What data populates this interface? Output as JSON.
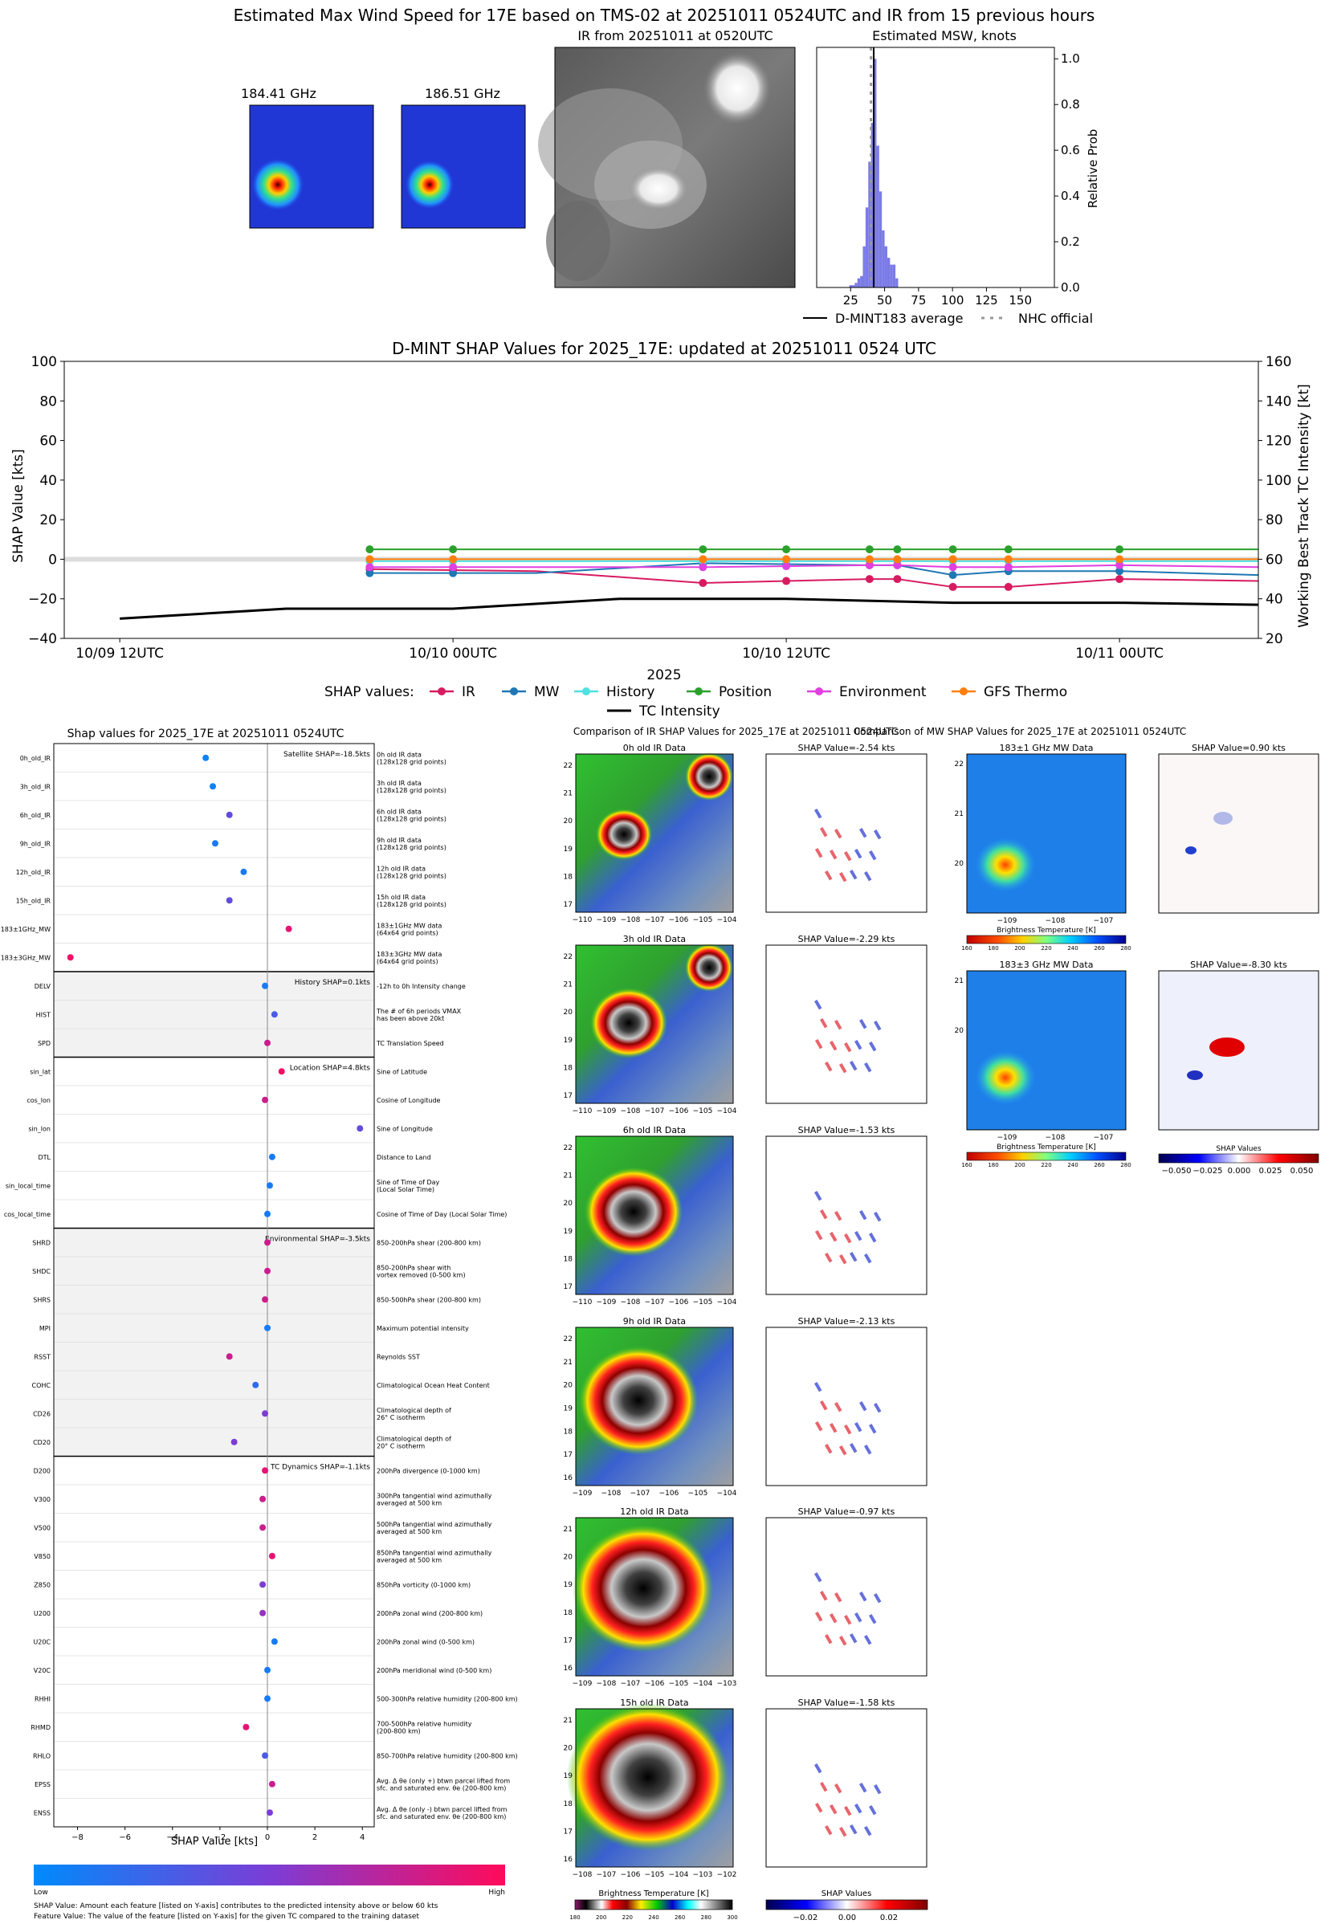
{
  "page": {
    "main_title": "Estimated Max Wind Speed for 17E based on TMS-02 at 20251011 0524UTC and IR from 15 previous hours"
  },
  "top_panels": {
    "mw1_title": "184.41 GHz",
    "mw2_title": "186.51 GHz",
    "ir_title": "IR from 20251011 at 0520UTC",
    "hist_title": "Estimated MSW, knots",
    "hist_ylabel": "Relative Prob",
    "hist_xticks": [
      "25",
      "50",
      "75",
      "100",
      "125",
      "150"
    ],
    "hist_yticks": [
      "0.0",
      "0.2",
      "0.4",
      "0.6",
      "0.8",
      "1.0"
    ],
    "legend_avg": "D-MINT183 average",
    "legend_nhc": "NHC official"
  },
  "colors": {
    "ir": "#d81b60",
    "mw": "#1f77b4",
    "history": "#4fe0e0",
    "position": "#2ca02c",
    "environment": "#e040e0",
    "gfs": "#ff7f0e",
    "intensity": "#000000",
    "hist_bar": "#7b7be6"
  },
  "timeseries": {
    "title": "D-MINT SHAP Values for 2025_17E: updated at 20251011 0524 UTC",
    "ylabel_left": "SHAP Value [kts]",
    "ylabel_right": "Working Best Track TC Intensity [kt]",
    "xlabel": "2025",
    "yticks_left": [
      "100",
      "80",
      "60",
      "40",
      "20",
      "0",
      "−20",
      "−40"
    ],
    "yticks_right": [
      "160",
      "140",
      "120",
      "100",
      "80",
      "60",
      "40",
      "20"
    ],
    "xticks": [
      "10/09 12UTC",
      "10/10 00UTC",
      "10/10 12UTC",
      "10/11 00UTC"
    ],
    "legend_prefix": "SHAP values:",
    "legend_labels": [
      "IR",
      "MW",
      "History",
      "Position",
      "Environment",
      "GFS Thermo"
    ],
    "legend_intensity": "TC Intensity"
  },
  "bar_panel": {
    "title": "Shap values for 2025_17E at 20251011 0524UTC",
    "xlabel": "SHAP Value [kts]",
    "xticks": [
      "−8",
      "−6",
      "−4",
      "−2",
      "0",
      "2",
      "4"
    ],
    "group_labels": [
      "Satellite SHAP=-18.5kts",
      "History SHAP=0.1kts",
      "Location SHAP=4.8kts",
      "Environmental SHAP=-3.5kts",
      "TC Dynamics SHAP=-1.1kts"
    ],
    "colorbar_low": "Low",
    "colorbar_high": "High",
    "footnote1": "SHAP Value: Amount each feature [listed on Y-axis] contributes to the predicted intensity above or below 60 kts",
    "footnote2": "Feature Value: The value of the feature [listed on Y-axis] for the given TC compared to the training dataset"
  },
  "features": [
    {
      "name": "0h_old_IR",
      "desc": "0h old IR data\n(128x128 grid points)"
    },
    {
      "name": "3h_old_IR",
      "desc": "3h old IR data\n(128x128 grid points)"
    },
    {
      "name": "6h_old_IR",
      "desc": "6h old IR data\n(128x128 grid points)"
    },
    {
      "name": "9h_old_IR",
      "desc": "9h old IR data\n(128x128 grid points)"
    },
    {
      "name": "12h_old_IR",
      "desc": "12h old IR data\n(128x128 grid points)"
    },
    {
      "name": "15h_old_IR",
      "desc": "15h old IR data\n(128x128 grid points)"
    },
    {
      "name": "183±1GHz_MW",
      "desc": "183±1GHz MW data\n(64x64 grid points)"
    },
    {
      "name": "183±3GHz_MW",
      "desc": "183±3GHz MW data\n(64x64 grid points)"
    },
    {
      "name": "DELV",
      "desc": "-12h to 0h Intensity change"
    },
    {
      "name": "HIST",
      "desc": "The # of 6h periods VMAX\nhas been above 20kt"
    },
    {
      "name": "SPD",
      "desc": "TC Translation Speed"
    },
    {
      "name": "sin_lat",
      "desc": "Sine of Latitude"
    },
    {
      "name": "cos_lon",
      "desc": "Cosine of Longitude"
    },
    {
      "name": "sin_lon",
      "desc": "Sine of Longitude"
    },
    {
      "name": "DTL",
      "desc": "Distance to Land"
    },
    {
      "name": "sin_local_time",
      "desc": "Sine of Time of Day\n(Local Solar Time)"
    },
    {
      "name": "cos_local_time",
      "desc": "Cosine of Time of Day (Local Solar Time)"
    },
    {
      "name": "SHRD",
      "desc": "850-200hPa shear (200-800 km)"
    },
    {
      "name": "SHDC",
      "desc": "850-200hPa shear with\nvortex removed (0-500 km)"
    },
    {
      "name": "SHRS",
      "desc": "850-500hPa shear (200-800 km)"
    },
    {
      "name": "MPI",
      "desc": "Maximum potential intensity"
    },
    {
      "name": "RSST",
      "desc": "Reynolds SST"
    },
    {
      "name": "COHC",
      "desc": "Climatological Ocean Heat Content"
    },
    {
      "name": "CD26",
      "desc": "Climatological depth of\n26° C isotherm"
    },
    {
      "name": "CD20",
      "desc": "Climatological depth of\n20° C isotherm"
    },
    {
      "name": "D200",
      "desc": "200hPa divergence (0-1000 km)"
    },
    {
      "name": "V300",
      "desc": "300hPa tangential wind azimuthally\naveraged at 500 km"
    },
    {
      "name": "V500",
      "desc": "500hPa tangential wind azimuthally\naveraged at 500 km"
    },
    {
      "name": "V850",
      "desc": "850hPa tangential wind azimuthally\naveraged at 500 km"
    },
    {
      "name": "Z850",
      "desc": "850hPa vorticity (0-1000 km)"
    },
    {
      "name": "U200",
      "desc": "200hPa zonal wind (200-800 km)"
    },
    {
      "name": "U20C",
      "desc": "200hPa zonal wind (0-500 km)"
    },
    {
      "name": "V20C",
      "desc": "200hPa meridional wind (0-500 km)"
    },
    {
      "name": "RHHI",
      "desc": "500-300hPa relative humidity (200-800 km)"
    },
    {
      "name": "RHMD",
      "desc": "700-500hPa relative humidity\n(200-800 km)"
    },
    {
      "name": "RHLO",
      "desc": "850-700hPa relative humidity (200-800 km)"
    },
    {
      "name": "EPSS",
      "desc": "Avg. Δ θe (only +) btwn parcel lifted from\nsfc. and saturated env. θe (200-800 km)"
    },
    {
      "name": "ENSS",
      "desc": "Avg. Δ θe (only -) btwn parcel lifted from\nsfc. and saturated env. θe (200-800 km)"
    }
  ],
  "ir_comparison": {
    "title": "Comparison of IR SHAP Values for 2025_17E at 20251011 0524UTC",
    "panel_titles": [
      "0h old IR Data",
      "3h old IR Data",
      "6h old IR Data",
      "9h old IR Data",
      "12h old IR Data",
      "15h old IR Data"
    ],
    "shap_titles": [
      "SHAP Value=-2.54 kts",
      "SHAP Value=-2.29 kts",
      "SHAP Value=-1.53 kts",
      "SHAP Value=-2.13 kts",
      "SHAP Value=-0.97 kts",
      "SHAP Value=-1.58 kts"
    ],
    "xticks": [
      [
        "−110",
        "−109",
        "−108",
        "−107",
        "−106",
        "−105",
        "−104"
      ],
      [
        "−110",
        "−109",
        "−108",
        "−107",
        "−106",
        "−105",
        "−104"
      ],
      [
        "−110",
        "−109",
        "−108",
        "−107",
        "−106",
        "−105",
        "−104"
      ],
      [
        "−109",
        "−108",
        "−107",
        "−106",
        "−105",
        "−104"
      ],
      [
        "−109",
        "−108",
        "−107",
        "−106",
        "−105",
        "−104",
        "−103"
      ],
      [
        "−108",
        "−107",
        "−106",
        "−105",
        "−104",
        "−103",
        "−102"
      ]
    ],
    "yticks": [
      [
        "22",
        "21",
        "20",
        "19",
        "18",
        "17"
      ],
      [
        "22",
        "21",
        "20",
        "19",
        "18",
        "17"
      ],
      [
        "22",
        "21",
        "20",
        "19",
        "18",
        "17"
      ],
      [
        "22",
        "21",
        "20",
        "19",
        "18",
        "17",
        "16"
      ],
      [
        "21",
        "20",
        "19",
        "18",
        "17",
        "16"
      ],
      [
        "21",
        "20",
        "19",
        "18",
        "17",
        "16"
      ]
    ],
    "cb_label": "Brightness Temperature [K]",
    "cb_ticks": [
      "180",
      "200",
      "220",
      "240",
      "260",
      "280",
      "300"
    ],
    "shap_cb_label": "SHAP Values",
    "shap_cb_ticks": [
      "−0.02",
      "0.00",
      "0.02"
    ]
  },
  "mw_comparison": {
    "title": "Comparison of MW SHAP Values for 2025_17E at 20251011 0524UTC",
    "panel_titles": [
      "183±1 GHz MW Data",
      "183±3 GHz MW Data"
    ],
    "shap_titles": [
      "SHAP Value=0.90 kts",
      "SHAP Value=-8.30 kts"
    ],
    "xticks": [
      "−109",
      "−108",
      "−107"
    ],
    "yticks": [
      [
        "22",
        "21",
        "20"
      ],
      [
        "21",
        "20"
      ]
    ],
    "cb_label": "Brightness Temperature [K]",
    "cb_ticks": [
      "160",
      "180",
      "200",
      "220",
      "240",
      "260",
      "280"
    ],
    "shap_cb_label": "SHAP Values",
    "shap_cb_ticks": [
      "−0.050",
      "−0.025",
      "0.000",
      "0.025",
      "0.050"
    ]
  },
  "chart_data": [
    {
      "type": "bar",
      "title": "Estimated MSW, knots",
      "xlabel": "",
      "ylabel": "Relative Prob",
      "xlim": [
        0,
        175
      ],
      "ylim": [
        0,
        1.05
      ],
      "bin_centers": [
        25,
        27,
        29,
        31,
        33,
        35,
        37,
        39,
        41,
        43,
        45,
        47,
        49,
        51,
        53,
        55,
        57,
        59
      ],
      "values": [
        0.01,
        0.01,
        0.02,
        0.04,
        0.05,
        0.18,
        0.35,
        0.55,
        0.72,
        1.0,
        0.62,
        0.42,
        0.25,
        0.18,
        0.13,
        0.1,
        0.1,
        0.04
      ],
      "average": 42,
      "nhc_official": 40
    },
    {
      "type": "line",
      "title": "D-MINT SHAP Values for 2025_17E: updated at 20251011 0524 UTC",
      "xlabel": "2025",
      "ylabel": "SHAP Value [kts]",
      "ylim": [
        -40,
        100
      ],
      "ylim_right": [
        20,
        160
      ],
      "xlim": [
        "10/09 10UTC",
        "10/11 05UTC"
      ],
      "x": [
        "10/09 12UTC",
        "10/09 21UTC",
        "10/10 03UTC",
        "10/10 09UTC",
        "10/10 15UTC",
        "10/10 16UTC",
        "10/10 18UTC",
        "10/10 20UTC",
        "10/11 00UTC",
        "10/11 05UTC"
      ],
      "series": [
        {
          "name": "IR",
          "values": [
            null,
            -5,
            -6,
            -12,
            -10,
            -10,
            -14,
            -14,
            -10,
            -11
          ]
        },
        {
          "name": "MW",
          "values": [
            null,
            -7,
            -7,
            -2,
            -3,
            -3,
            -8,
            -6,
            -6,
            -8
          ]
        },
        {
          "name": "History",
          "values": [
            null,
            -1,
            -1,
            -1,
            -1,
            -1,
            -1,
            -1,
            -1,
            -1
          ]
        },
        {
          "name": "Position",
          "values": [
            null,
            5,
            5,
            5,
            5,
            5,
            5,
            5,
            5,
            5
          ]
        },
        {
          "name": "Environment",
          "values": [
            null,
            -4,
            -4,
            -4,
            -3,
            -3,
            -4,
            -4,
            -3,
            -4
          ]
        },
        {
          "name": "GFS Thermo",
          "values": [
            null,
            0,
            0,
            0,
            0,
            0,
            0,
            0,
            0,
            0
          ]
        }
      ],
      "marker_x": [
        "10/09 21UTC",
        "10/10 00UTC",
        "10/10 09UTC",
        "10/10 12UTC",
        "10/10 15UTC",
        "10/10 16UTC",
        "10/10 18UTC",
        "10/10 20UTC",
        "10/11 00UTC"
      ],
      "intensity_x": [
        "10/09 12UTC",
        "10/09 18UTC",
        "10/10 00UTC",
        "10/10 06UTC",
        "10/10 12UTC",
        "10/10 18UTC",
        "10/11 00UTC",
        "10/11 05UTC"
      ],
      "intensity_values": [
        30,
        35,
        35,
        40,
        40,
        38,
        38,
        37
      ]
    },
    {
      "type": "scatter",
      "title": "Shap values for 2025_17E at 20251011 0524UTC",
      "xlabel": "SHAP Value [kts]",
      "xlim": [
        -9,
        4.5
      ],
      "categories": [
        "0h_old_IR",
        "3h_old_IR",
        "6h_old_IR",
        "9h_old_IR",
        "12h_old_IR",
        "15h_old_IR",
        "183±1GHz_MW",
        "183±3GHz_MW",
        "DELV",
        "HIST",
        "SPD",
        "sin_lat",
        "cos_lon",
        "sin_lon",
        "DTL",
        "sin_local_time",
        "cos_local_time",
        "SHRD",
        "SHDC",
        "SHRS",
        "MPI",
        "RSST",
        "COHC",
        "CD26",
        "CD20",
        "D200",
        "V300",
        "V500",
        "V850",
        "Z850",
        "U200",
        "U20C",
        "V20C",
        "RHHI",
        "RHMD",
        "RHLO",
        "EPSS",
        "ENSS"
      ],
      "values": [
        -2.6,
        -2.3,
        -1.6,
        -2.2,
        -1.0,
        -1.6,
        0.9,
        -8.3,
        -0.1,
        0.3,
        0.0,
        0.6,
        -0.1,
        3.9,
        0.2,
        0.1,
        0.0,
        0.0,
        0.0,
        -0.1,
        0.0,
        -1.6,
        -0.5,
        -0.1,
        -1.4,
        -0.1,
        -0.2,
        -0.2,
        0.2,
        -0.2,
        -0.2,
        0.3,
        0.0,
        0.0,
        -0.9,
        -0.1,
        0.2,
        0.1
      ],
      "feature_value": [
        0.05,
        0.05,
        0.4,
        0.1,
        0.1,
        0.4,
        0.9,
        0.95,
        0.1,
        0.3,
        0.8,
        0.95,
        0.8,
        0.4,
        0.1,
        0.1,
        0.1,
        0.8,
        0.8,
        0.8,
        0.1,
        0.8,
        0.2,
        0.5,
        0.5,
        0.9,
        0.8,
        0.8,
        0.9,
        0.5,
        0.6,
        0.1,
        0.1,
        0.1,
        0.9,
        0.3,
        0.8,
        0.5
      ]
    }
  ]
}
